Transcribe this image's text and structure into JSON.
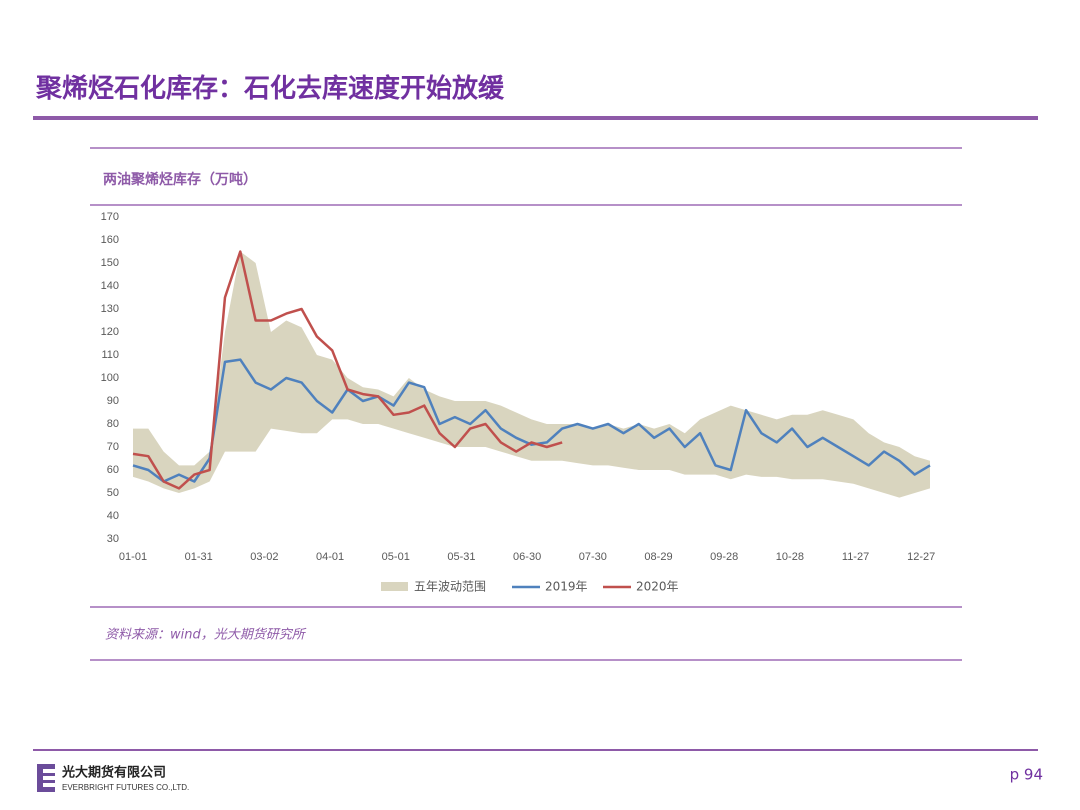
{
  "header": {
    "title": "聚烯烃石化库存：石化去库速度开始放缓"
  },
  "chart_data": {
    "type": "line",
    "title": "两油聚烯烃库存（万吨）",
    "x": [
      "01-01",
      "01-08",
      "01-15",
      "01-22",
      "01-29",
      "02-05",
      "02-12",
      "02-19",
      "02-26",
      "03-05",
      "03-12",
      "03-19",
      "03-26",
      "04-02",
      "04-09",
      "04-16",
      "04-23",
      "04-30",
      "05-07",
      "05-14",
      "05-21",
      "05-28",
      "06-04",
      "06-11",
      "06-18",
      "06-25",
      "07-02",
      "07-09",
      "07-16",
      "07-23",
      "07-30",
      "08-06",
      "08-13",
      "08-20",
      "08-27",
      "09-03",
      "09-10",
      "09-17",
      "09-24",
      "10-01",
      "10-08",
      "10-15",
      "10-22",
      "10-29",
      "11-05",
      "11-12",
      "11-19",
      "11-26",
      "12-03",
      "12-10",
      "12-17",
      "12-24",
      "12-31"
    ],
    "band": {
      "name": "五年波动范围",
      "color": "#d9d5bf",
      "low": [
        57,
        55,
        52,
        50,
        52,
        55,
        68,
        68,
        68,
        78,
        77,
        76,
        76,
        82,
        82,
        80,
        80,
        78,
        76,
        74,
        72,
        70,
        70,
        70,
        68,
        66,
        64,
        64,
        64,
        63,
        62,
        62,
        61,
        60,
        60,
        60,
        58,
        58,
        58,
        56,
        58,
        57,
        57,
        56,
        56,
        56,
        55,
        54,
        52,
        50,
        48,
        50,
        52
      ],
      "high": [
        78,
        78,
        68,
        62,
        62,
        68,
        120,
        155,
        150,
        120,
        125,
        122,
        110,
        108,
        100,
        96,
        95,
        92,
        100,
        95,
        92,
        90,
        90,
        90,
        88,
        85,
        82,
        80,
        80,
        80,
        78,
        80,
        78,
        80,
        78,
        80,
        76,
        82,
        85,
        88,
        86,
        84,
        82,
        84,
        84,
        86,
        84,
        82,
        76,
        72,
        70,
        66,
        64
      ]
    },
    "series": [
      {
        "name": "2019年",
        "color": "#4f81bd",
        "values": [
          62,
          60,
          55,
          58,
          55,
          65,
          107,
          108,
          98,
          95,
          100,
          98,
          90,
          85,
          95,
          90,
          92,
          88,
          98,
          96,
          80,
          83,
          80,
          86,
          78,
          74,
          71,
          72,
          78,
          80,
          78,
          80,
          76,
          80,
          74,
          78,
          70,
          76,
          62,
          60,
          86,
          76,
          72,
          78,
          70,
          74,
          70,
          66,
          62,
          68,
          64,
          58,
          62
        ]
      },
      {
        "name": "2020年",
        "color": "#c0504d",
        "values": [
          67,
          66,
          55,
          52,
          58,
          60,
          135,
          155,
          125,
          125,
          128,
          130,
          118,
          112,
          95,
          93,
          92,
          84,
          85,
          88,
          76,
          70,
          78,
          80,
          72,
          68,
          72,
          70,
          72,
          null,
          null,
          null,
          null,
          null,
          null,
          null,
          null,
          null,
          null,
          null,
          null,
          null,
          null,
          null,
          null,
          null,
          null,
          null,
          null,
          null,
          null,
          null,
          null
        ]
      }
    ],
    "xlim": [
      "01-01",
      "12-31"
    ],
    "xticks": [
      "01-01",
      "01-31",
      "03-02",
      "04-01",
      "05-01",
      "05-31",
      "06-30",
      "07-30",
      "08-29",
      "09-28",
      "10-28",
      "11-27",
      "12-27"
    ],
    "ylim": [
      30,
      170
    ],
    "yticks": [
      30,
      40,
      50,
      60,
      70,
      80,
      90,
      100,
      110,
      120,
      130,
      140,
      150,
      160,
      170
    ],
    "grid": false
  },
  "source": "资料来源：wind，光大期货研究所",
  "footer": {
    "company_cn": "光大期货有限公司",
    "company_en": "EVERBRIGHT FUTURES CO.,LTD.",
    "page": "p 94"
  }
}
